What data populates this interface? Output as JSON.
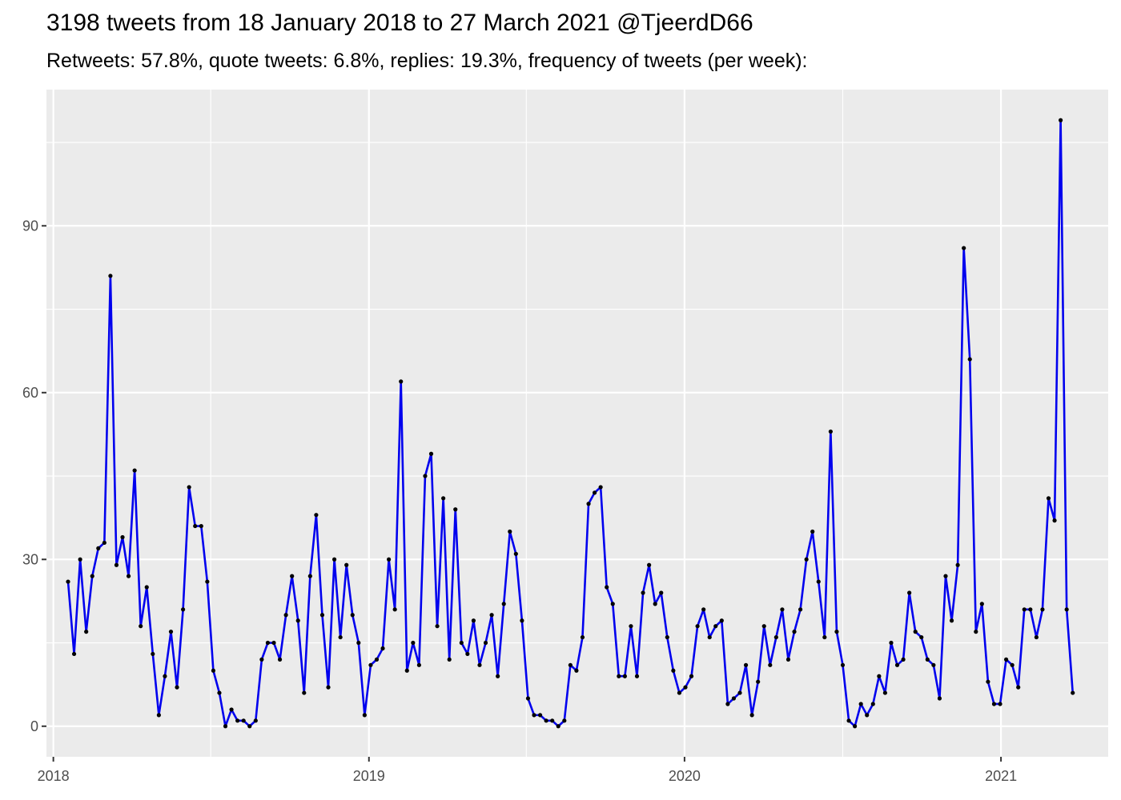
{
  "chart_data": {
    "type": "line",
    "title": "3198 tweets from 18 January 2018 to 27 March 2021 @TjeerdD66",
    "subtitle": "Retweets: 57.8%, quote tweets: 6.8%, replies: 19.3%, frequency of tweets (per week):",
    "xlabel": "",
    "ylabel": "",
    "x_ticks": [
      "2018",
      "2019",
      "2020",
      "2021"
    ],
    "y_ticks": [
      0,
      30,
      60,
      90
    ],
    "xlim": [
      "2017-12-24",
      "2021-05-05"
    ],
    "ylim": [
      -5.5,
      114.5
    ],
    "grid": true,
    "line_color": "#0000ee",
    "point_color": "#000000",
    "panel_color": "#ebebeb",
    "series": [
      {
        "x": [
          "2018-01-18",
          "2018-01-25",
          "2018-02-01",
          "2018-02-08",
          "2018-02-15",
          "2018-02-22",
          "2018-03-01",
          "2018-03-08",
          "2018-03-15",
          "2018-03-22",
          "2018-03-29",
          "2018-04-05",
          "2018-04-12",
          "2018-04-19",
          "2018-04-26",
          "2018-05-03",
          "2018-05-10",
          "2018-05-17",
          "2018-05-24",
          "2018-05-31",
          "2018-06-07",
          "2018-06-14",
          "2018-06-21",
          "2018-06-28",
          "2018-07-05",
          "2018-07-12",
          "2018-07-19",
          "2018-07-26",
          "2018-08-02",
          "2018-08-09",
          "2018-08-16",
          "2018-08-23",
          "2018-08-30",
          "2018-09-06",
          "2018-09-13",
          "2018-09-20",
          "2018-09-27",
          "2018-10-04",
          "2018-10-11",
          "2018-10-18",
          "2018-10-25",
          "2018-11-01",
          "2018-11-08",
          "2018-11-15",
          "2018-11-22",
          "2018-11-29",
          "2018-12-06",
          "2018-12-13",
          "2018-12-20",
          "2018-12-27",
          "2019-01-03",
          "2019-01-10",
          "2019-01-17",
          "2019-01-24",
          "2019-01-31",
          "2019-02-07",
          "2019-02-14",
          "2019-02-21",
          "2019-02-28",
          "2019-03-07",
          "2019-03-14",
          "2019-03-21",
          "2019-03-28",
          "2019-04-04",
          "2019-04-11",
          "2019-04-18",
          "2019-04-25",
          "2019-05-02",
          "2019-05-09",
          "2019-05-16",
          "2019-05-23",
          "2019-05-30",
          "2019-06-06",
          "2019-06-13",
          "2019-06-20",
          "2019-06-27",
          "2019-07-04",
          "2019-07-11",
          "2019-07-18",
          "2019-07-25",
          "2019-08-01",
          "2019-08-08",
          "2019-08-15",
          "2019-08-22",
          "2019-08-29",
          "2019-09-05",
          "2019-09-12",
          "2019-09-19",
          "2019-09-26",
          "2019-10-03",
          "2019-10-10",
          "2019-10-17",
          "2019-10-24",
          "2019-10-31",
          "2019-11-07",
          "2019-11-14",
          "2019-11-21",
          "2019-11-28",
          "2019-12-05",
          "2019-12-12",
          "2019-12-19",
          "2019-12-26",
          "2020-01-02",
          "2020-01-09",
          "2020-01-16",
          "2020-01-23",
          "2020-01-30",
          "2020-02-06",
          "2020-02-13",
          "2020-02-20",
          "2020-02-27",
          "2020-03-05",
          "2020-03-12",
          "2020-03-19",
          "2020-03-26",
          "2020-04-02",
          "2020-04-09",
          "2020-04-16",
          "2020-04-23",
          "2020-04-30",
          "2020-05-07",
          "2020-05-14",
          "2020-05-21",
          "2020-05-28",
          "2020-06-04",
          "2020-06-11",
          "2020-06-18",
          "2020-06-25",
          "2020-07-02",
          "2020-07-09",
          "2020-07-16",
          "2020-07-23",
          "2020-07-30",
          "2020-08-06",
          "2020-08-13",
          "2020-08-20",
          "2020-08-27",
          "2020-09-03",
          "2020-09-10",
          "2020-09-17",
          "2020-09-24",
          "2020-10-01",
          "2020-10-08",
          "2020-10-15",
          "2020-10-22",
          "2020-10-29",
          "2020-11-05",
          "2020-11-12",
          "2020-11-19",
          "2020-11-26",
          "2020-12-03",
          "2020-12-10",
          "2020-12-17",
          "2020-12-24",
          "2020-12-31",
          "2021-01-07",
          "2021-01-14",
          "2021-01-21",
          "2021-01-28",
          "2021-02-04",
          "2021-02-11",
          "2021-02-18",
          "2021-02-25",
          "2021-03-04",
          "2021-03-11",
          "2021-03-18",
          "2021-03-25"
        ],
        "values": [
          26,
          13,
          30,
          17,
          27,
          32,
          33,
          81,
          29,
          34,
          27,
          46,
          18,
          25,
          13,
          2,
          9,
          17,
          7,
          21,
          43,
          36,
          36,
          26,
          10,
          6,
          0,
          3,
          1,
          1,
          0,
          1,
          12,
          15,
          15,
          12,
          20,
          27,
          19,
          6,
          27,
          38,
          20,
          7,
          30,
          16,
          29,
          20,
          15,
          2,
          11,
          12,
          14,
          30,
          21,
          62,
          10,
          15,
          11,
          45,
          49,
          18,
          41,
          12,
          39,
          15,
          13,
          19,
          11,
          15,
          20,
          9,
          22,
          35,
          31,
          19,
          5,
          2,
          2,
          1,
          1,
          0,
          1,
          11,
          10,
          16,
          40,
          42,
          43,
          25,
          22,
          9,
          9,
          18,
          9,
          24,
          29,
          22,
          24,
          16,
          10,
          6,
          7,
          9,
          18,
          21,
          16,
          18,
          19,
          4,
          5,
          6,
          11,
          2,
          8,
          18,
          11,
          16,
          21,
          12,
          17,
          21,
          30,
          35,
          26,
          16,
          53,
          17,
          11,
          1,
          0,
          4,
          2,
          4,
          9,
          6,
          15,
          11,
          12,
          24,
          17,
          16,
          12,
          11,
          5,
          27,
          19,
          29,
          86,
          66,
          17,
          22,
          8,
          4,
          4,
          12,
          11,
          7,
          21,
          21,
          16,
          21,
          41,
          37,
          109,
          21,
          6
        ]
      }
    ]
  }
}
